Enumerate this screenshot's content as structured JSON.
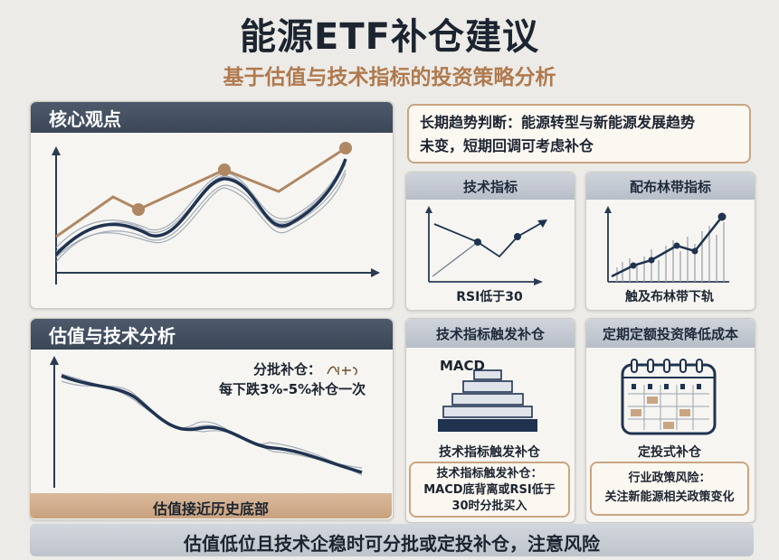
{
  "header": {
    "title": "能源ETF补仓建议",
    "subtitle": "基于估值与技术指标的投资策略分析"
  },
  "core_view": {
    "heading": "核心观点",
    "trend_note_line1": "长期趋势判断：能源转型与新能源发展趋势",
    "trend_note_line2": "未变，短期回调可考虑补仓"
  },
  "valuation": {
    "heading": "估值与技术分析",
    "batch_label": "分批补仓：",
    "batch_rule": "每下跌3%-5%补仓一次",
    "bottom_band": "估值接近历史底部"
  },
  "technical": {
    "heading": "技术指标",
    "caption": "RSI低于30"
  },
  "bollinger": {
    "heading": "配布林带指标",
    "caption": "触及布林带下轨"
  },
  "trigger": {
    "heading": "技术指标触发补仓",
    "macd_label": "MACD",
    "caption": "技术指标触发补仓",
    "note_line1": "技术指标触发补仓：",
    "note_line2": "MACD底背离或RSI低于",
    "note_line3": "30时分批买入"
  },
  "dca": {
    "heading": "定期定额投资降低成本",
    "caption": "定投式补仓",
    "note_line1": "行业政策风险：",
    "note_line2": "关注新能源相关政策变化"
  },
  "footer": {
    "conclusion": "估值低位且技术企稳时可分批或定投补仓，注意风险"
  },
  "colors": {
    "navy": "#1f3350",
    "bronze": "#b08763",
    "header_dark": "#3b4757"
  }
}
